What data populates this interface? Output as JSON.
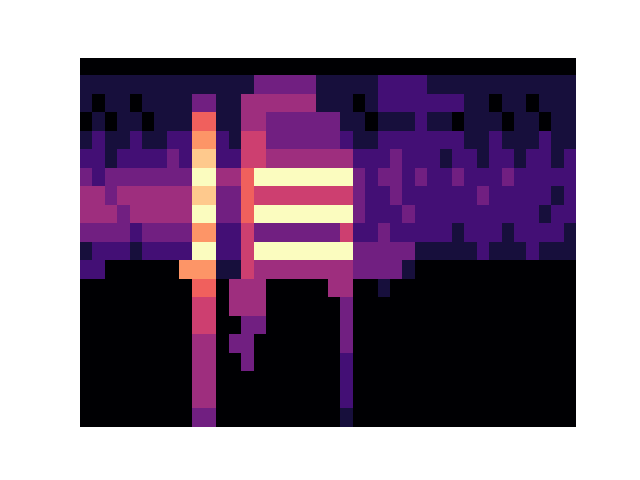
{
  "chart_data": {
    "type": "heatmap",
    "color": "magma",
    "tick_labels": false,
    "color_range": [
      0,
      9
    ],
    "cells": [
      [
        0,
        0,
        0,
        0,
        0,
        0,
        0,
        0,
        0,
        0,
        0,
        0,
        0,
        0,
        0,
        0,
        0,
        0,
        0,
        0,
        0,
        0,
        0,
        0,
        0,
        0,
        0,
        0,
        0,
        0,
        0,
        0,
        0,
        0,
        0,
        0,
        0,
        0,
        0,
        0
      ],
      [
        1,
        1,
        1,
        1,
        1,
        1,
        1,
        1,
        1,
        1,
        1,
        1,
        1,
        1,
        3,
        3,
        3,
        3,
        3,
        1,
        1,
        1,
        1,
        1,
        2,
        2,
        2,
        2,
        1,
        1,
        1,
        1,
        1,
        1,
        1,
        1,
        1,
        1,
        1,
        1
      ],
      [
        1,
        0,
        1,
        1,
        0,
        1,
        1,
        1,
        1,
        3,
        3,
        1,
        1,
        4,
        4,
        4,
        4,
        4,
        4,
        1,
        1,
        1,
        0,
        1,
        2,
        2,
        2,
        2,
        2,
        2,
        2,
        1,
        1,
        0,
        1,
        1,
        0,
        1,
        1,
        1
      ],
      [
        0,
        1,
        0,
        1,
        1,
        0,
        1,
        1,
        1,
        6,
        6,
        1,
        1,
        4,
        4,
        3,
        3,
        3,
        3,
        3,
        3,
        1,
        1,
        0,
        1,
        1,
        1,
        2,
        1,
        1,
        0,
        1,
        1,
        1,
        0,
        1,
        1,
        0,
        1,
        1
      ],
      [
        1,
        2,
        1,
        1,
        2,
        1,
        1,
        2,
        2,
        7,
        7,
        2,
        1,
        5,
        5,
        3,
        3,
        3,
        3,
        3,
        3,
        2,
        1,
        1,
        2,
        2,
        2,
        2,
        2,
        2,
        2,
        1,
        1,
        2,
        1,
        1,
        1,
        2,
        1,
        1
      ],
      [
        2,
        2,
        1,
        2,
        2,
        2,
        2,
        3,
        2,
        8,
        8,
        2,
        2,
        5,
        5,
        4,
        4,
        4,
        4,
        4,
        4,
        4,
        2,
        2,
        2,
        3,
        2,
        2,
        2,
        1,
        2,
        2,
        1,
        2,
        2,
        1,
        2,
        2,
        1,
        2
      ],
      [
        3,
        2,
        3,
        3,
        3,
        3,
        3,
        3,
        3,
        9,
        9,
        4,
        4,
        6,
        9,
        9,
        9,
        9,
        9,
        9,
        9,
        9,
        3,
        2,
        3,
        3,
        2,
        3,
        2,
        2,
        3,
        2,
        2,
        2,
        3,
        2,
        2,
        2,
        2,
        2
      ],
      [
        4,
        4,
        3,
        4,
        4,
        4,
        4,
        4,
        4,
        8,
        8,
        3,
        3,
        6,
        5,
        5,
        5,
        5,
        5,
        5,
        5,
        5,
        3,
        2,
        2,
        3,
        2,
        2,
        2,
        2,
        2,
        2,
        3,
        2,
        2,
        2,
        2,
        2,
        1,
        2
      ],
      [
        4,
        4,
        4,
        3,
        4,
        4,
        4,
        4,
        4,
        9,
        9,
        3,
        3,
        6,
        9,
        9,
        9,
        9,
        9,
        9,
        9,
        9,
        3,
        2,
        2,
        2,
        3,
        2,
        2,
        2,
        2,
        2,
        2,
        2,
        2,
        2,
        2,
        1,
        2,
        2
      ],
      [
        3,
        3,
        3,
        3,
        2,
        3,
        3,
        3,
        3,
        7,
        7,
        2,
        2,
        5,
        3,
        3,
        3,
        3,
        3,
        3,
        3,
        5,
        2,
        2,
        3,
        2,
        2,
        2,
        2,
        2,
        1,
        2,
        2,
        2,
        1,
        2,
        2,
        2,
        2,
        1
      ],
      [
        1,
        2,
        2,
        2,
        1,
        2,
        2,
        2,
        2,
        9,
        9,
        2,
        2,
        5,
        9,
        9,
        9,
        9,
        9,
        9,
        9,
        9,
        3,
        3,
        3,
        3,
        3,
        1,
        1,
        1,
        1,
        1,
        2,
        1,
        1,
        1,
        2,
        1,
        1,
        1
      ],
      [
        2,
        2,
        0,
        0,
        0,
        0,
        0,
        0,
        7,
        7,
        7,
        1,
        1,
        5,
        4,
        4,
        4,
        4,
        4,
        4,
        4,
        4,
        3,
        3,
        3,
        3,
        1,
        0,
        0,
        0,
        0,
        0,
        0,
        0,
        0,
        0,
        0,
        0,
        0,
        0
      ],
      [
        0,
        0,
        0,
        0,
        0,
        0,
        0,
        0,
        0,
        6,
        6,
        0,
        4,
        4,
        4,
        0,
        0,
        0,
        0,
        0,
        4,
        4,
        0,
        0,
        1,
        0,
        0,
        0,
        0,
        0,
        0,
        0,
        0,
        0,
        0,
        0,
        0,
        0,
        0,
        0
      ],
      [
        0,
        0,
        0,
        0,
        0,
        0,
        0,
        0,
        0,
        5,
        5,
        0,
        4,
        4,
        4,
        0,
        0,
        0,
        0,
        0,
        0,
        3,
        0,
        0,
        0,
        0,
        0,
        0,
        0,
        0,
        0,
        0,
        0,
        0,
        0,
        0,
        0,
        0,
        0,
        0
      ],
      [
        0,
        0,
        0,
        0,
        0,
        0,
        0,
        0,
        0,
        5,
        5,
        0,
        0,
        3,
        3,
        0,
        0,
        0,
        0,
        0,
        0,
        3,
        0,
        0,
        0,
        0,
        0,
        0,
        0,
        0,
        0,
        0,
        0,
        0,
        0,
        0,
        0,
        0,
        0,
        0
      ],
      [
        0,
        0,
        0,
        0,
        0,
        0,
        0,
        0,
        0,
        4,
        4,
        0,
        3,
        3,
        0,
        0,
        0,
        0,
        0,
        0,
        0,
        3,
        0,
        0,
        0,
        0,
        0,
        0,
        0,
        0,
        0,
        0,
        0,
        0,
        0,
        0,
        0,
        0,
        0,
        0
      ],
      [
        0,
        0,
        0,
        0,
        0,
        0,
        0,
        0,
        0,
        4,
        4,
        0,
        0,
        3,
        0,
        0,
        0,
        0,
        0,
        0,
        0,
        2,
        0,
        0,
        0,
        0,
        0,
        0,
        0,
        0,
        0,
        0,
        0,
        0,
        0,
        0,
        0,
        0,
        0,
        0
      ],
      [
        0,
        0,
        0,
        0,
        0,
        0,
        0,
        0,
        0,
        4,
        4,
        0,
        0,
        0,
        0,
        0,
        0,
        0,
        0,
        0,
        0,
        2,
        0,
        0,
        0,
        0,
        0,
        0,
        0,
        0,
        0,
        0,
        0,
        0,
        0,
        0,
        0,
        0,
        0,
        0
      ],
      [
        0,
        0,
        0,
        0,
        0,
        0,
        0,
        0,
        0,
        4,
        4,
        0,
        0,
        0,
        0,
        0,
        0,
        0,
        0,
        0,
        0,
        2,
        0,
        0,
        0,
        0,
        0,
        0,
        0,
        0,
        0,
        0,
        0,
        0,
        0,
        0,
        0,
        0,
        0,
        0
      ],
      [
        0,
        0,
        0,
        0,
        0,
        0,
        0,
        0,
        0,
        3,
        3,
        0,
        0,
        0,
        0,
        0,
        0,
        0,
        0,
        0,
        0,
        1,
        0,
        0,
        0,
        0,
        0,
        0,
        0,
        0,
        0,
        0,
        0,
        0,
        0,
        0,
        0,
        0,
        0,
        0
      ]
    ]
  }
}
